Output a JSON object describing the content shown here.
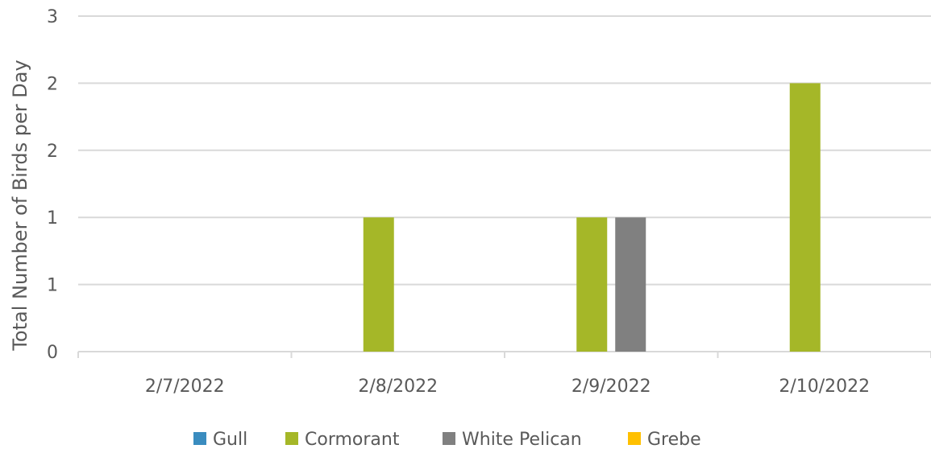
{
  "chart_data": {
    "type": "bar",
    "title": "",
    "xlabel": "",
    "ylabel": "Total Number of Birds per Day",
    "categories": [
      "2/7/2022",
      "2/8/2022",
      "2/9/2022",
      "2/10/2022"
    ],
    "series": [
      {
        "name": "Gull",
        "color": "#3A8CBF",
        "values": [
          0,
          0,
          0,
          0
        ]
      },
      {
        "name": "Cormorant",
        "color": "#A5B728",
        "values": [
          0,
          1,
          1,
          2
        ]
      },
      {
        "name": "White Pelican",
        "color": "#808080",
        "values": [
          0,
          0,
          1,
          0
        ]
      },
      {
        "name": "Grebe",
        "color": "#FFC000",
        "values": [
          0,
          0,
          0,
          0
        ]
      }
    ],
    "ylim": [
      0,
      2.5
    ],
    "yticks": [
      0,
      0.5,
      1,
      1.5,
      2,
      2.5
    ],
    "ytick_labels": [
      "0",
      "1",
      "1",
      "2",
      "2",
      "3"
    ],
    "grid": true,
    "gridline_color": "#D9D9D9",
    "legend_position": "bottom"
  }
}
